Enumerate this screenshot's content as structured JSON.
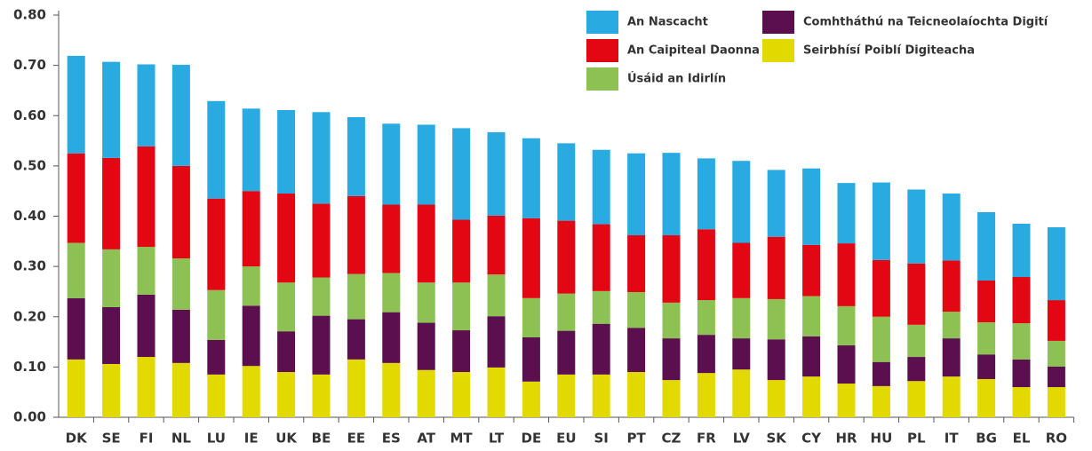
{
  "chart_data": {
    "type": "stacked_bar",
    "categories": [
      "DK",
      "SE",
      "FI",
      "NL",
      "LU",
      "IE",
      "UK",
      "BE",
      "EE",
      "ES",
      "AT",
      "MT",
      "LT",
      "DE",
      "EU",
      "SI",
      "PT",
      "CZ",
      "FR",
      "LV",
      "SK",
      "CY",
      "HR",
      "HU",
      "PL",
      "IT",
      "BG",
      "EL",
      "RO"
    ],
    "series": [
      {
        "name": "An Nascacht",
        "color": "#29abe2",
        "values": [
          0.194,
          0.191,
          0.163,
          0.201,
          0.194,
          0.164,
          0.166,
          0.182,
          0.157,
          0.161,
          0.159,
          0.182,
          0.166,
          0.159,
          0.154,
          0.148,
          0.163,
          0.164,
          0.141,
          0.163,
          0.133,
          0.152,
          0.12,
          0.154,
          0.147,
          0.133,
          0.136,
          0.106,
          0.145
        ]
      },
      {
        "name": "An Caipiteal Daonna",
        "color": "#e30613",
        "values": [
          0.178,
          0.182,
          0.2,
          0.184,
          0.182,
          0.15,
          0.177,
          0.147,
          0.155,
          0.136,
          0.155,
          0.125,
          0.117,
          0.159,
          0.145,
          0.133,
          0.113,
          0.134,
          0.141,
          0.11,
          0.124,
          0.102,
          0.125,
          0.113,
          0.122,
          0.102,
          0.083,
          0.092,
          0.081
        ]
      },
      {
        "name": "Úsáid an Idirlín",
        "color": "#8dc153",
        "values": [
          0.11,
          0.115,
          0.095,
          0.102,
          0.099,
          0.078,
          0.097,
          0.076,
          0.09,
          0.078,
          0.08,
          0.095,
          0.083,
          0.078,
          0.074,
          0.065,
          0.071,
          0.071,
          0.069,
          0.08,
          0.08,
          0.08,
          0.078,
          0.09,
          0.064,
          0.053,
          0.064,
          0.072,
          0.051
        ]
      },
      {
        "name": "Comhtháthú na Teicneolaíochta Digití",
        "color": "#5b0f4e",
        "values": [
          0.122,
          0.113,
          0.124,
          0.106,
          0.069,
          0.12,
          0.081,
          0.117,
          0.08,
          0.101,
          0.094,
          0.083,
          0.102,
          0.088,
          0.087,
          0.101,
          0.088,
          0.083,
          0.076,
          0.062,
          0.081,
          0.08,
          0.076,
          0.048,
          0.048,
          0.076,
          0.049,
          0.055,
          0.041
        ]
      },
      {
        "name": "Seirbhísí Poiblí Digiteacha",
        "color": "#e2d900",
        "values": [
          0.115,
          0.106,
          0.12,
          0.108,
          0.085,
          0.102,
          0.09,
          0.085,
          0.115,
          0.108,
          0.094,
          0.09,
          0.099,
          0.071,
          0.085,
          0.085,
          0.09,
          0.074,
          0.088,
          0.095,
          0.074,
          0.081,
          0.067,
          0.062,
          0.072,
          0.081,
          0.076,
          0.06,
          0.06
        ]
      }
    ],
    "ylim": [
      0,
      0.8
    ],
    "yticks": [
      {
        "value": 0,
        "label": "0.00"
      },
      {
        "value": 0.1,
        "label": "0.10"
      },
      {
        "value": 0.2,
        "label": "0.20"
      },
      {
        "value": 0.3,
        "label": "0.30"
      },
      {
        "value": 0.4,
        "label": "0.40"
      },
      {
        "value": 0.5,
        "label": "0.50"
      },
      {
        "value": 0.6,
        "label": "0.60"
      },
      {
        "value": 0.7,
        "label": "0.70"
      },
      {
        "value": 0.8,
        "label": "0.80"
      }
    ],
    "grid": false
  }
}
